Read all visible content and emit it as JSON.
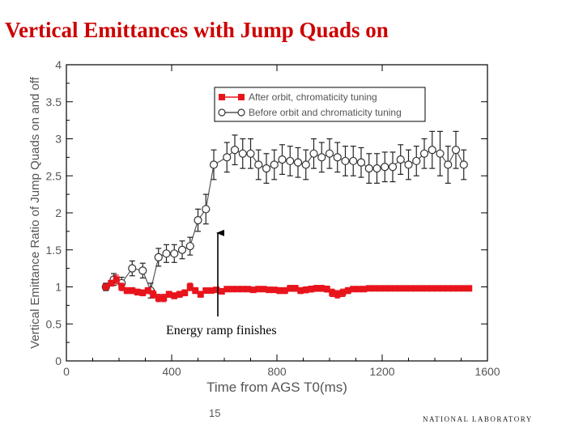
{
  "slide": {
    "title": "Vertical Emittances with Jump Quads on",
    "page_number": "15",
    "footer_logo": "NATIONAL LABORATORY"
  },
  "chart_data": {
    "type": "scatter",
    "title": "",
    "xlabel": "Time from AGS T0(ms)",
    "ylabel": "Vertical Emittance Ratio of Jump Quads on and off",
    "xlim": [
      0,
      1600
    ],
    "ylim": [
      0,
      4
    ],
    "x_ticks": [
      0,
      400,
      800,
      1200,
      1600
    ],
    "y_ticks": [
      0,
      0.5,
      1,
      1.5,
      2,
      2.5,
      3,
      3.5,
      4
    ],
    "x_tick_labels": [
      "0",
      "400",
      "800",
      "1200",
      "1600"
    ],
    "y_tick_labels": [
      "0",
      "0.5",
      "1",
      "1.5",
      "2",
      "2.5",
      "3",
      "3.5",
      "4"
    ],
    "grid": false,
    "legend_position": "top-right",
    "series": [
      {
        "name": "After orbit, chromaticity tuning",
        "color": "#e8141c",
        "marker": "square-filled",
        "x": [
          150,
          170,
          190,
          210,
          230,
          250,
          270,
          290,
          310,
          330,
          350,
          370,
          390,
          410,
          430,
          450,
          470,
          490,
          510,
          530,
          550,
          570,
          590,
          610,
          630,
          650,
          670,
          690,
          710,
          730,
          750,
          770,
          790,
          810,
          830,
          850,
          870,
          890,
          910,
          930,
          950,
          970,
          990,
          1010,
          1030,
          1050,
          1070,
          1090,
          1110,
          1130,
          1150,
          1170,
          1190,
          1210,
          1230,
          1250,
          1270,
          1290,
          1310,
          1330,
          1350,
          1370,
          1390,
          1410,
          1430,
          1450,
          1470,
          1490,
          1510,
          1530
        ],
        "y": [
          1.0,
          1.05,
          1.1,
          1.0,
          0.95,
          0.95,
          0.93,
          0.92,
          0.95,
          0.9,
          0.85,
          0.85,
          0.9,
          0.88,
          0.9,
          0.92,
          1.0,
          0.95,
          0.9,
          0.95,
          0.95,
          0.96,
          0.94,
          0.97,
          0.97,
          0.97,
          0.97,
          0.97,
          0.96,
          0.97,
          0.97,
          0.96,
          0.96,
          0.95,
          0.95,
          0.98,
          0.98,
          0.95,
          0.96,
          0.97,
          0.98,
          0.98,
          0.97,
          0.92,
          0.9,
          0.92,
          0.95,
          0.97,
          0.97,
          0.97,
          0.98,
          0.98,
          0.98,
          0.98,
          0.98,
          0.98,
          0.98,
          0.98,
          0.98,
          0.98,
          0.98,
          0.98,
          0.98,
          0.98,
          0.98,
          0.98,
          0.98,
          0.98,
          0.98,
          0.98
        ],
        "error": [
          0.02,
          0.04,
          0.06,
          0.05,
          0.04,
          0.04,
          0.04,
          0.04,
          0.04,
          0.05,
          0.05,
          0.05,
          0.04,
          0.04,
          0.04,
          0.04,
          0.05,
          0.04,
          0.04,
          0.03,
          0.03,
          0.03,
          0.03,
          0.03,
          0.03,
          0.03,
          0.03,
          0.03,
          0.03,
          0.03,
          0.03,
          0.03,
          0.03,
          0.04,
          0.04,
          0.04,
          0.04,
          0.04,
          0.04,
          0.04,
          0.04,
          0.04,
          0.04,
          0.05,
          0.05,
          0.05,
          0.04,
          0.03,
          0.03,
          0.03,
          0.02,
          0.02,
          0.02,
          0.02,
          0.02,
          0.02,
          0.02,
          0.02,
          0.02,
          0.02,
          0.02,
          0.02,
          0.02,
          0.02,
          0.02,
          0.02,
          0.02,
          0.02,
          0.02,
          0.02
        ]
      },
      {
        "name": "Before orbit and chromaticity tuning",
        "color": "#555555",
        "marker": "circle-open",
        "x": [
          150,
          180,
          210,
          250,
          290,
          320,
          350,
          380,
          410,
          440,
          470,
          500,
          530,
          560,
          610,
          640,
          670,
          700,
          730,
          760,
          790,
          820,
          850,
          880,
          910,
          940,
          970,
          1000,
          1030,
          1060,
          1090,
          1120,
          1150,
          1180,
          1210,
          1240,
          1270,
          1300,
          1330,
          1360,
          1390,
          1420,
          1450,
          1480,
          1510
        ],
        "y": [
          1.0,
          1.1,
          1.05,
          1.25,
          1.22,
          0.95,
          1.4,
          1.45,
          1.45,
          1.5,
          1.55,
          1.9,
          2.05,
          2.65,
          2.75,
          2.85,
          2.8,
          2.8,
          2.65,
          2.6,
          2.65,
          2.72,
          2.7,
          2.68,
          2.65,
          2.8,
          2.75,
          2.8,
          2.75,
          2.7,
          2.7,
          2.68,
          2.6,
          2.6,
          2.62,
          2.62,
          2.72,
          2.65,
          2.7,
          2.8,
          2.85,
          2.8,
          2.65,
          2.85,
          2.65
        ],
        "error": [
          0.05,
          0.08,
          0.08,
          0.1,
          0.1,
          0.1,
          0.12,
          0.12,
          0.12,
          0.12,
          0.12,
          0.15,
          0.2,
          0.2,
          0.2,
          0.2,
          0.2,
          0.2,
          0.2,
          0.2,
          0.2,
          0.2,
          0.2,
          0.2,
          0.2,
          0.2,
          0.2,
          0.2,
          0.2,
          0.2,
          0.2,
          0.2,
          0.2,
          0.2,
          0.2,
          0.2,
          0.2,
          0.2,
          0.2,
          0.2,
          0.25,
          0.3,
          0.25,
          0.25,
          0.2
        ]
      }
    ],
    "annotation": {
      "text": "Energy ramp finishes",
      "arrow_x": 600,
      "arrow_y_from": 0.6,
      "arrow_y_to": 1.75
    }
  }
}
